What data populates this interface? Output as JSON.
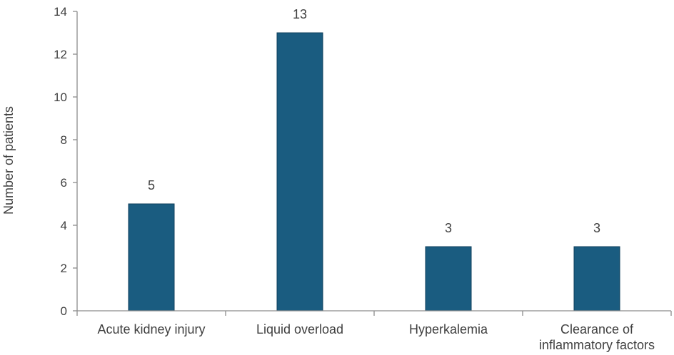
{
  "chart_data": {
    "type": "bar",
    "categories": [
      [
        "Acute kidney injury"
      ],
      [
        "Liquid overload"
      ],
      [
        "Hyperkalemia"
      ],
      [
        "Clearance of",
        "inflammatory factors"
      ]
    ],
    "values": [
      5,
      13,
      3,
      3
    ],
    "data_labels": [
      "5",
      "13",
      "3",
      "3"
    ],
    "title": "",
    "xlabel": "",
    "ylabel": "Number of patients",
    "ylim": [
      0,
      14
    ],
    "yticks": [
      0,
      2,
      4,
      6,
      8,
      10,
      12,
      14
    ],
    "grid": false,
    "legend": "none",
    "bar_color": "#1a5c80",
    "bar_edge_color": "#0f3f5c",
    "axis_color": "#8c8c8c"
  }
}
